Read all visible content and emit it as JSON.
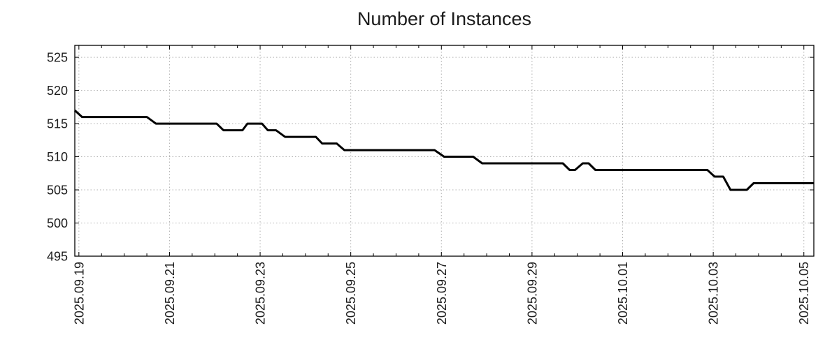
{
  "title": "Number of Instances",
  "colors": {
    "line": "#000000",
    "grid": "#b0b0b0",
    "border": "#000000",
    "text": "#1c1c1c",
    "background": "#ffffff"
  },
  "chart_data": {
    "type": "line",
    "title": "Number of Instances",
    "xlabel": "",
    "ylabel": "",
    "x_unit": "days since 2025-09-19 00:00",
    "x_tick_labels": [
      "2025.09.19",
      "2025.09.21",
      "2025.09.23",
      "2025.09.25",
      "2025.09.27",
      "2025.09.29",
      "2025.10.01",
      "2025.10.03",
      "2025.10.05"
    ],
    "x_tick_days": [
      0,
      2,
      4,
      6,
      8,
      10,
      12,
      14,
      16
    ],
    "x_minor_tick_step_days": 0.5,
    "y_ticks": [
      495,
      500,
      505,
      510,
      515,
      520,
      525
    ],
    "ylim": [
      495,
      526.8
    ],
    "xlim_days": [
      -0.09,
      16.22
    ],
    "grid": "dotted",
    "legend_position": "none",
    "series": [
      {
        "name": "instances",
        "points": [
          {
            "d": -0.09,
            "v": 517
          },
          {
            "d": 0.07,
            "v": 516
          },
          {
            "d": 1.5,
            "v": 516
          },
          {
            "d": 1.7,
            "v": 515
          },
          {
            "d": 3.04,
            "v": 515
          },
          {
            "d": 3.19,
            "v": 514
          },
          {
            "d": 3.61,
            "v": 514
          },
          {
            "d": 3.72,
            "v": 515
          },
          {
            "d": 4.04,
            "v": 515
          },
          {
            "d": 4.17,
            "v": 514
          },
          {
            "d": 4.35,
            "v": 514
          },
          {
            "d": 4.55,
            "v": 513
          },
          {
            "d": 5.23,
            "v": 513
          },
          {
            "d": 5.37,
            "v": 512
          },
          {
            "d": 5.69,
            "v": 512
          },
          {
            "d": 5.86,
            "v": 511
          },
          {
            "d": 7.85,
            "v": 511
          },
          {
            "d": 8.06,
            "v": 510
          },
          {
            "d": 8.7,
            "v": 510
          },
          {
            "d": 8.9,
            "v": 509
          },
          {
            "d": 10.68,
            "v": 509
          },
          {
            "d": 10.83,
            "v": 508
          },
          {
            "d": 10.95,
            "v": 508
          },
          {
            "d": 11.12,
            "v": 509
          },
          {
            "d": 11.25,
            "v": 509
          },
          {
            "d": 11.4,
            "v": 508
          },
          {
            "d": 13.87,
            "v": 508
          },
          {
            "d": 14.03,
            "v": 507
          },
          {
            "d": 14.22,
            "v": 507
          },
          {
            "d": 14.38,
            "v": 505
          },
          {
            "d": 14.74,
            "v": 505
          },
          {
            "d": 14.89,
            "v": 506
          },
          {
            "d": 16.22,
            "v": 506
          }
        ]
      }
    ]
  }
}
